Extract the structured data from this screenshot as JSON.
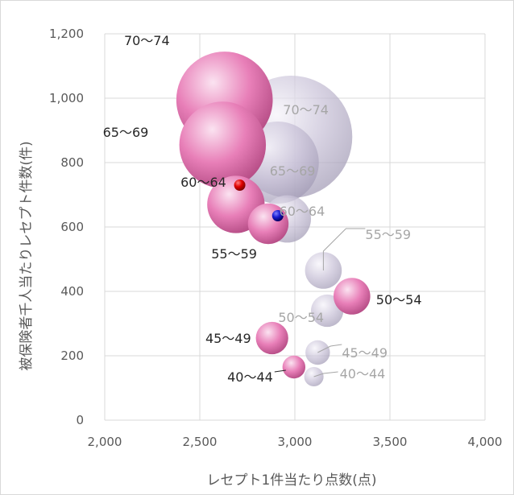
{
  "colors": {
    "series_a": "#e87fb8",
    "series_a_light": "#fbe3f1",
    "series_a_dark": "#b84f88",
    "series_b": "#c9c2d8",
    "series_b_light": "#f6f4fa",
    "series_b_dark": "#a49db7",
    "marker_red": "#e00000",
    "marker_blue": "#1a1ad0",
    "grid": "#d9d9d9",
    "text_dark": "#262626",
    "text_gray": "#a6a6a6"
  },
  "chart_data": {
    "type": "bubble",
    "xlabel": "レセプト1件当たり点数(点)",
    "ylabel": "被保険者千人当たりレセプト件数(件)",
    "xlim": [
      2000,
      4000
    ],
    "ylim": [
      0,
      1200
    ],
    "xticks": [
      "2,000",
      "2,500",
      "3,000",
      "3,500",
      "4,000"
    ],
    "yticks": [
      "0",
      "200",
      "400",
      "600",
      "800",
      "1,000",
      "1,200"
    ],
    "xtick_values": [
      2000,
      2500,
      3000,
      3500,
      4000
    ],
    "ytick_values": [
      0,
      200,
      400,
      600,
      800,
      1000,
      1200
    ],
    "grid": true,
    "series": [
      {
        "style": "gray",
        "points": [
          {
            "label": "70～74",
            "x": 2980,
            "y": 880,
            "size": 100
          },
          {
            "label": "65～69",
            "x": 2910,
            "y": 800,
            "size": 45
          },
          {
            "label": "60～64",
            "x": 2960,
            "y": 625,
            "size": 15
          },
          {
            "label": "55～59",
            "x": 3150,
            "y": 465,
            "size": 9
          },
          {
            "label": "50～54",
            "x": 3170,
            "y": 340,
            "size": 7
          },
          {
            "label": "45～49",
            "x": 3120,
            "y": 210,
            "size": 4
          },
          {
            "label": "40～44",
            "x": 3100,
            "y": 135,
            "size": 2.5
          }
        ]
      },
      {
        "style": "pink",
        "points": [
          {
            "label": "70～74",
            "x": 2630,
            "y": 995,
            "size": 62
          },
          {
            "label": "65～69",
            "x": 2620,
            "y": 855,
            "size": 50
          },
          {
            "label": "60～64",
            "x": 2690,
            "y": 670,
            "size": 22
          },
          {
            "label": "55～59",
            "x": 2860,
            "y": 610,
            "size": 11
          },
          {
            "label": "50～54",
            "x": 3300,
            "y": 385,
            "size": 9
          },
          {
            "label": "45～49",
            "x": 2880,
            "y": 255,
            "size": 7
          },
          {
            "label": "40～44",
            "x": 2995,
            "y": 165,
            "size": 3.5
          }
        ]
      },
      {
        "style": "marker",
        "points": [
          {
            "x": 2710,
            "y": 730,
            "color": "red"
          },
          {
            "x": 2910,
            "y": 635,
            "color": "blue"
          }
        ]
      }
    ]
  }
}
